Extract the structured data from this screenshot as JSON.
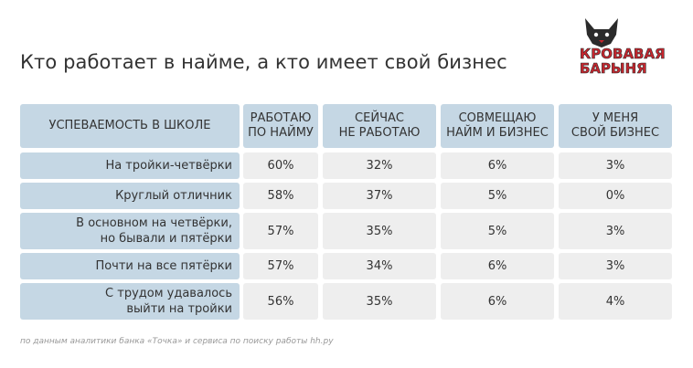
{
  "title": "Кто работает в найме, а кто имеет свой бизнес",
  "logo": {
    "line1": "КРОВАВАЯ",
    "line2": "БАРЫНЯ",
    "icon": "fox-icon",
    "colors": {
      "red": "#c7262e",
      "dark": "#2b2b2b"
    }
  },
  "table": {
    "headers": [
      {
        "line1": "УСПЕВАЕМОСТЬ В ШКОЛЕ",
        "line2": ""
      },
      {
        "line1": "РАБОТАЮ",
        "line2": "ПО НАЙМУ"
      },
      {
        "line1": "СЕЙЧАС",
        "line2": "НЕ РАБОТАЮ"
      },
      {
        "line1": "СОВМЕЩАЮ",
        "line2": "НАЙМ И БИЗНЕС"
      },
      {
        "line1": "У МЕНЯ",
        "line2": "СВОЙ БИЗНЕС"
      }
    ],
    "rows": [
      {
        "label1": "На тройки-четвёрки",
        "label2": "",
        "values": [
          "60%",
          "32%",
          "6%",
          "3%"
        ]
      },
      {
        "label1": "Круглый отличник",
        "label2": "",
        "values": [
          "58%",
          "37%",
          "5%",
          "0%"
        ]
      },
      {
        "label1": "В основном на четвёрки,",
        "label2": "но бывали и пятёрки",
        "values": [
          "57%",
          "35%",
          "5%",
          "3%"
        ]
      },
      {
        "label1": "Почти на все пятёрки",
        "label2": "",
        "values": [
          "57%",
          "34%",
          "6%",
          "3%"
        ]
      },
      {
        "label1": "С трудом удавалось",
        "label2": "выйти на тройки",
        "values": [
          "56%",
          "35%",
          "6%",
          "4%"
        ]
      }
    ],
    "colors": {
      "header_bg": "#c5d7e4",
      "value_bg": "#eeeeee"
    }
  },
  "footnote": "по данным аналитики банка «Точка» и сервиса по поиску работы hh.ру"
}
